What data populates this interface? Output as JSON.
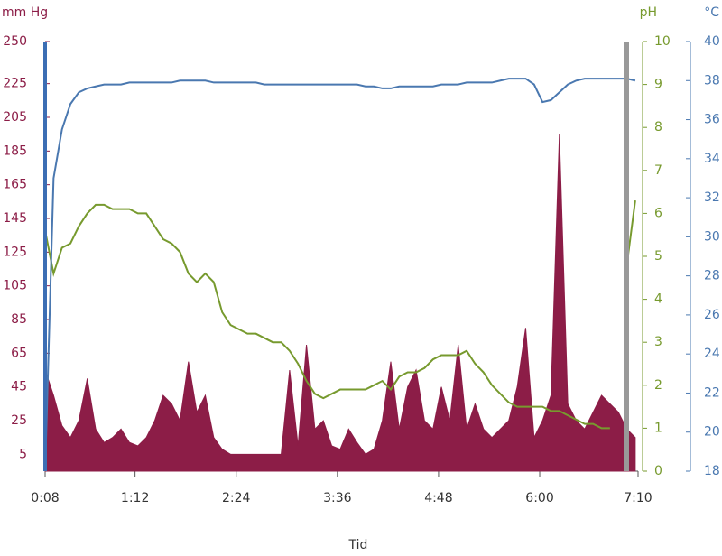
{
  "chart_data": {
    "type": "line",
    "x_label": "Tid",
    "x": [
      8,
      14,
      20,
      26,
      32,
      38,
      44,
      50,
      56,
      62,
      68,
      74,
      80,
      86,
      92,
      98,
      104,
      110,
      116,
      122,
      128,
      134,
      140,
      146,
      152,
      158,
      164,
      170,
      176,
      182,
      188,
      194,
      200,
      206,
      212,
      218,
      224,
      230,
      236,
      242,
      248,
      254,
      260,
      266,
      272,
      278,
      284,
      290,
      296,
      302,
      308,
      314,
      320,
      326,
      332,
      338,
      344,
      350,
      356,
      362,
      368,
      374,
      380,
      386,
      392,
      398,
      404,
      410,
      416,
      422,
      428
    ],
    "xlim": [
      8,
      430
    ],
    "xticks": [
      {
        "value": 8,
        "label": "0:08"
      },
      {
        "value": 72,
        "label": "1:12"
      },
      {
        "value": 144,
        "label": "2:24"
      },
      {
        "value": 216,
        "label": "3:36"
      },
      {
        "value": 288,
        "label": "4:48"
      },
      {
        "value": 360,
        "label": "6:00"
      },
      {
        "value": 430,
        "label": "7:10"
      }
    ],
    "ylim": [
      -5,
      250
    ],
    "yticks": [
      5,
      25,
      45,
      65,
      85,
      105,
      125,
      145,
      165,
      185,
      205,
      225,
      250
    ],
    "y2lim": [
      0,
      10
    ],
    "y2ticks": [
      0,
      1,
      2,
      3,
      4,
      5,
      6,
      7,
      8,
      9,
      10
    ],
    "y3lim": [
      18,
      40
    ],
    "y3ticks": [
      18,
      20,
      22,
      24,
      26,
      28,
      30,
      32,
      34,
      36,
      38,
      40
    ],
    "series": [
      {
        "name": "mm Hg",
        "color": "#8c1d47",
        "axis": "y",
        "fill": true,
        "values": [
          55,
          40,
          22,
          15,
          25,
          50,
          20,
          12,
          15,
          20,
          12,
          10,
          15,
          25,
          40,
          35,
          25,
          60,
          30,
          40,
          15,
          8,
          5,
          5,
          5,
          5,
          5,
          5,
          5,
          55,
          10,
          70,
          20,
          25,
          10,
          8,
          20,
          12,
          5,
          8,
          25,
          60,
          20,
          45,
          55,
          25,
          20,
          45,
          25,
          70,
          20,
          35,
          20,
          15,
          20,
          25,
          45,
          80,
          15,
          25,
          40,
          195,
          35,
          25,
          20,
          30,
          40,
          35,
          30,
          20,
          15
        ]
      },
      {
        "name": "pH",
        "color": "#779a2e",
        "axis": "y2",
        "values": [
          5.6,
          4.6,
          5.2,
          5.3,
          5.7,
          6.0,
          6.2,
          6.2,
          6.1,
          6.1,
          6.1,
          6.0,
          6.0,
          5.7,
          5.4,
          5.3,
          5.1,
          4.6,
          4.4,
          4.6,
          4.4,
          3.7,
          3.4,
          3.3,
          3.2,
          3.2,
          3.1,
          3.0,
          3.0,
          2.8,
          2.5,
          2.1,
          1.8,
          1.7,
          1.8,
          1.9,
          1.9,
          1.9,
          1.9,
          2.0,
          2.1,
          1.9,
          2.2,
          2.3,
          2.3,
          2.4,
          2.6,
          2.7,
          2.7,
          2.7,
          2.8,
          2.5,
          2.3,
          2.0,
          1.8,
          1.6,
          1.5,
          1.5,
          1.5,
          1.5,
          1.4,
          1.4,
          1.3,
          1.2,
          1.1,
          1.1,
          1.0,
          1.0,
          null,
          4.8,
          6.3
        ]
      },
      {
        "name": "°C",
        "color": "#4a78b0",
        "axis": "y3",
        "values": [
          18,
          33,
          35.5,
          36.8,
          37.4,
          37.6,
          37.7,
          37.8,
          37.8,
          37.8,
          37.9,
          37.9,
          37.9,
          37.9,
          37.9,
          37.9,
          38,
          38,
          38,
          38,
          37.9,
          37.9,
          37.9,
          37.9,
          37.9,
          37.9,
          37.8,
          37.8,
          37.8,
          37.8,
          37.8,
          37.8,
          37.8,
          37.8,
          37.8,
          37.8,
          37.8,
          37.8,
          37.7,
          37.7,
          37.6,
          37.6,
          37.7,
          37.7,
          37.7,
          37.7,
          37.7,
          37.8,
          37.8,
          37.8,
          37.9,
          37.9,
          37.9,
          37.9,
          38,
          38.1,
          38.1,
          38.1,
          37.8,
          36.9,
          37,
          37.4,
          37.8,
          38,
          38.1,
          38.1,
          38.1,
          38.1,
          38.1,
          38.1,
          38
        ]
      }
    ]
  }
}
